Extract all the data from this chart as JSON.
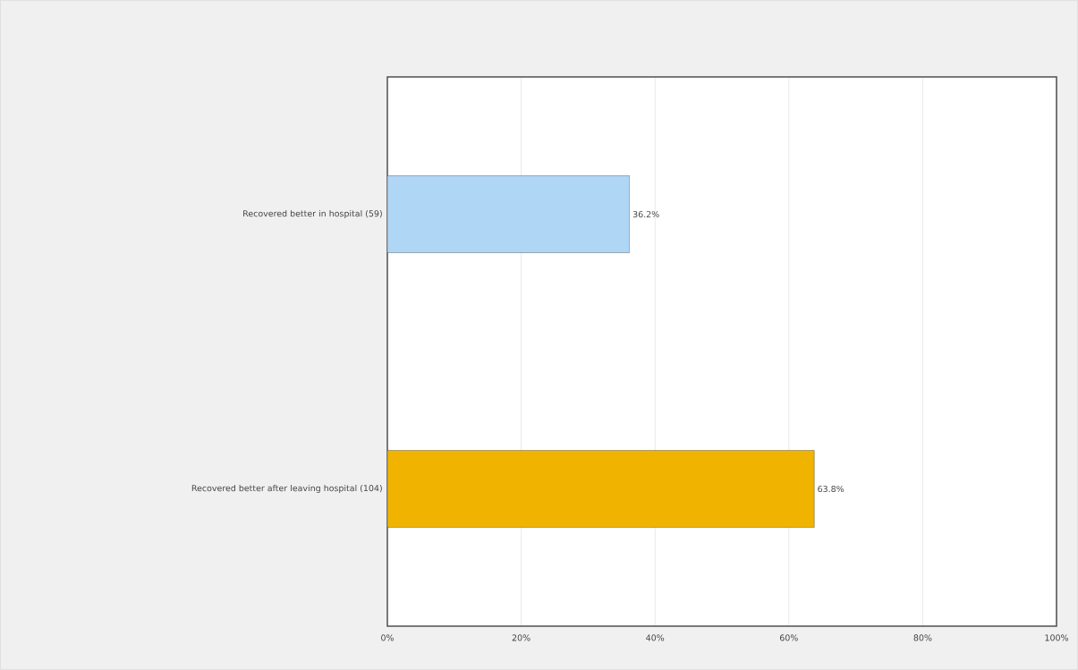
{
  "chart_data": {
    "type": "bar",
    "orientation": "horizontal",
    "categories": [
      "Recovered better in hospital (59)",
      "Recovered better after leaving hospital (104)"
    ],
    "values": [
      36.2,
      63.8
    ],
    "colors": [
      "#b0d6f6",
      "#f0b400"
    ],
    "value_labels": [
      "36.2%",
      "63.8%"
    ],
    "xlim": [
      0,
      100
    ],
    "xticks": [
      {
        "value": 0,
        "label": "0%"
      },
      {
        "value": 20,
        "label": "20%"
      },
      {
        "value": 40,
        "label": "40%"
      },
      {
        "value": 60,
        "label": "60%"
      },
      {
        "value": 80,
        "label": "80%"
      },
      {
        "value": 100,
        "label": "100%"
      }
    ],
    "grid": "x"
  }
}
